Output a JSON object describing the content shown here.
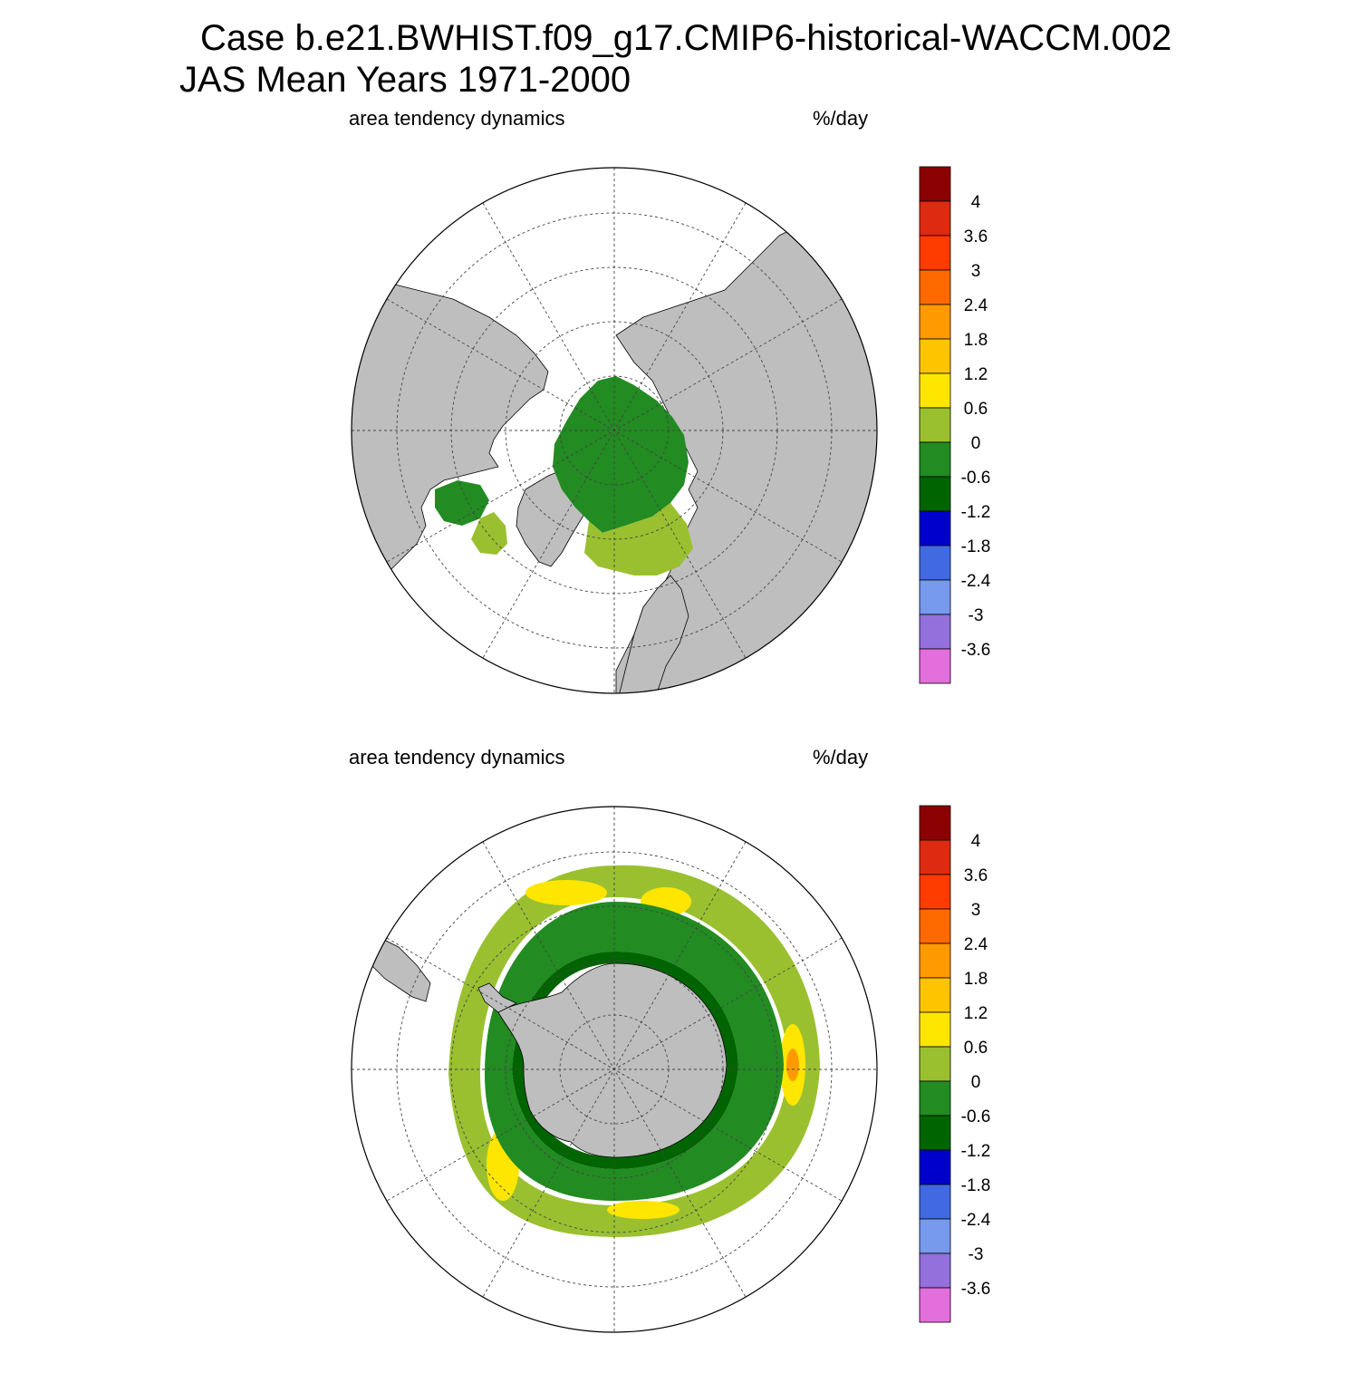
{
  "title": {
    "line1": "Case b.e21.BWHIST.f09_g17.CMIP6-historical-WACCM.002",
    "line2": "JAS Mean   Years 1971-2000"
  },
  "panels": [
    {
      "id": "north",
      "left_label": "area tendency dynamics",
      "right_label": "%/day"
    },
    {
      "id": "south",
      "left_label": "area tendency dynamics",
      "right_label": "%/day"
    }
  ],
  "colorbar": {
    "labels": [
      "4",
      "3.6",
      "3",
      "2.4",
      "1.8",
      "1.2",
      "0.6",
      "0",
      "-0.6",
      "-1.2",
      "-1.8",
      "-2.4",
      "-3",
      "-3.6"
    ],
    "colors": [
      "#8b0000",
      "#dd2a10",
      "#ff3c00",
      "#ff6a00",
      "#ff9a00",
      "#ffc400",
      "#ffe600",
      "#9ac030",
      "#228b22",
      "#006400",
      "#0000cd",
      "#4169e1",
      "#7799ee",
      "#9370db",
      "#e36fdd"
    ]
  },
  "map_colors": {
    "land": "#bebebe",
    "ocean": "#ffffff",
    "grid": "#444444"
  }
}
